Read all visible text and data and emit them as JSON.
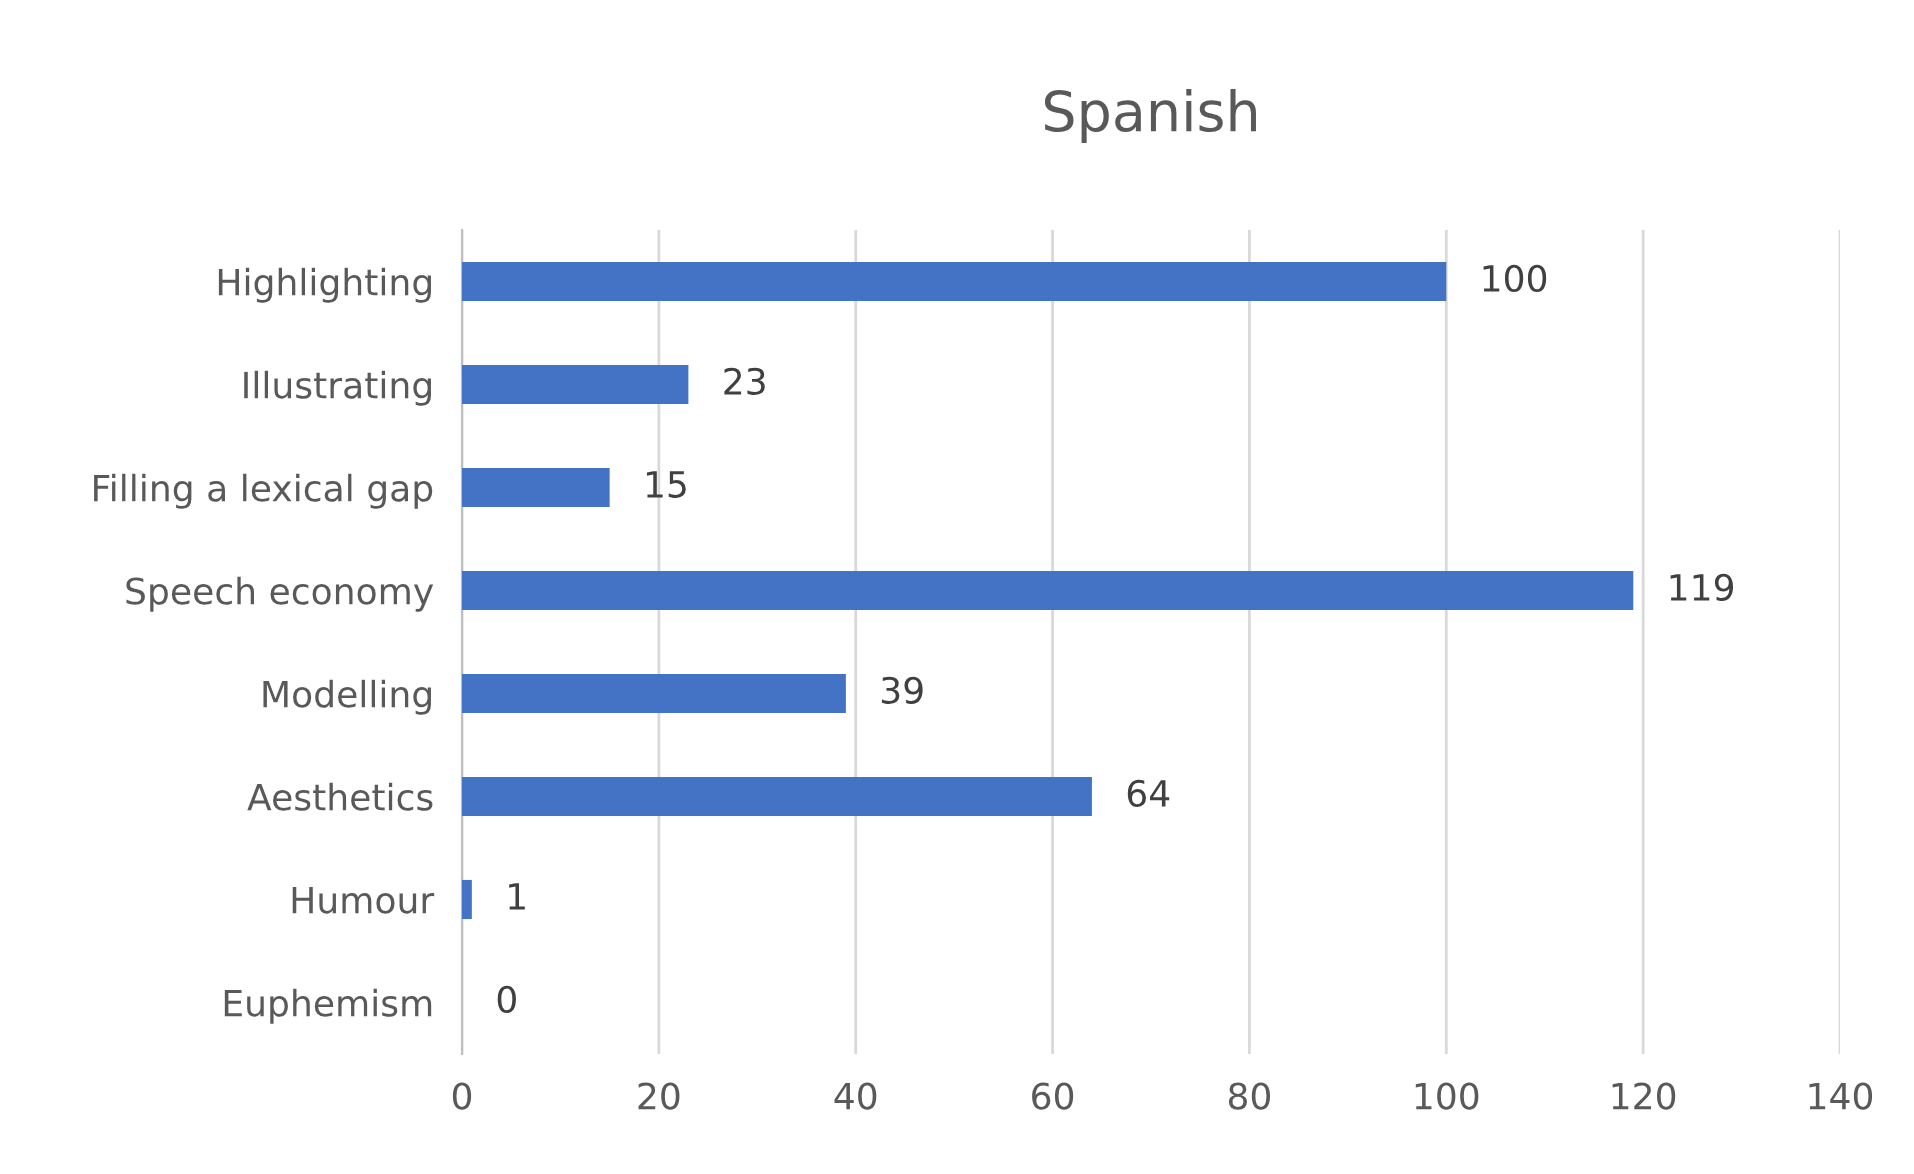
{
  "chart_data": {
    "type": "bar",
    "title": "Spanish",
    "orientation": "horizontal",
    "categories": [
      "Highlighting",
      "Illustrating",
      "Filling a lexical gap",
      "Speech economy",
      "Modelling",
      "Aesthetics",
      "Humour",
      "Euphemism"
    ],
    "values": [
      100,
      23,
      15,
      119,
      39,
      64,
      1,
      0
    ],
    "color": "#4472c4",
    "xlim": [
      0,
      140
    ],
    "xticks": [
      0,
      20,
      40,
      60,
      80,
      100,
      120,
      140
    ],
    "grid": "x",
    "data_labels": true
  }
}
